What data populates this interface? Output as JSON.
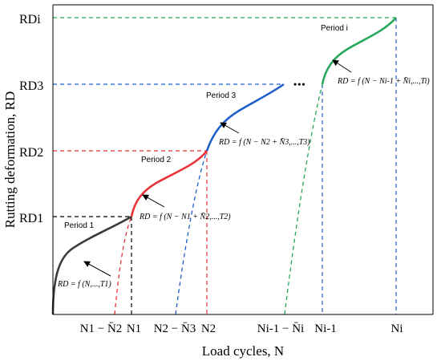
{
  "axes": {
    "x_title": "Load cycles, N",
    "y_title": "Rutting deformation, RD"
  },
  "y_ticks": [
    {
      "name": "y-tick-rd1",
      "label": "RD1"
    },
    {
      "name": "y-tick-rd2",
      "label": "RD2"
    },
    {
      "name": "y-tick-rd3",
      "label": "RD3"
    },
    {
      "name": "y-tick-rdi",
      "label": "RDi"
    }
  ],
  "x_ticks": [
    {
      "name": "x-tick-n1-minus-nbar2",
      "label": "N1 − N̄2"
    },
    {
      "name": "x-tick-n1",
      "label": "N1"
    },
    {
      "name": "x-tick-n2-minus-nbar3",
      "label": "N2 − N̄3"
    },
    {
      "name": "x-tick-n2",
      "label": "N2"
    },
    {
      "name": "x-tick-ni-1-minus-nbari",
      "label": "Ni-1 − N̄i"
    },
    {
      "name": "x-tick-ni-1",
      "label": "Ni-1"
    },
    {
      "name": "x-tick-ni",
      "label": "Ni"
    }
  ],
  "periods": [
    {
      "name": "period-1-label",
      "label": "Period 1",
      "equation": "RD = f (N,...,T1)",
      "color": "#3b3b3b"
    },
    {
      "name": "period-2-label",
      "label": "Period 2",
      "equation": "RD = f (N − N1 + N̄2,...,T2)",
      "color": "#e8333a"
    },
    {
      "name": "period-3-label",
      "label": "Period 3",
      "equation": "RD = f (N − N2 + N̄3,...,T3)",
      "color": "#1f5fc9"
    },
    {
      "name": "period-i-label",
      "label": "Period i",
      "equation": "RD = f (N − Ni-1 + N̄i,...,Ti)",
      "color": "#27a85a"
    }
  ],
  "ellipsis": "•••"
}
